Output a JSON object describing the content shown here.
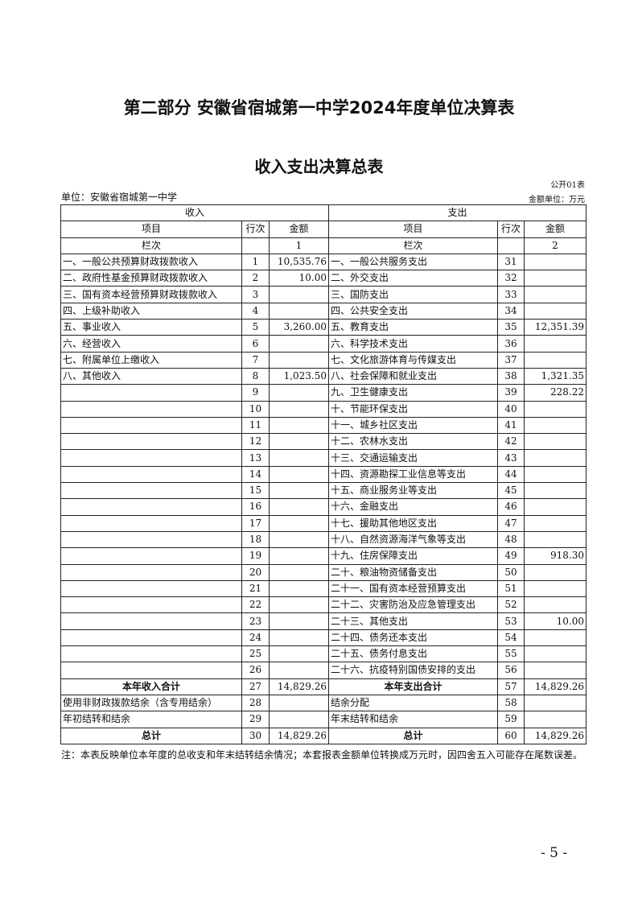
{
  "title": "第二部分  安徽省宿城第一中学2024年度单位决算表",
  "subtitle": "收入支出决算总表",
  "form_no": "公开01表",
  "unit": "单位：安徽省宿城第一中学",
  "amount_unit": "金额单位：万元",
  "table": {
    "income_header": "收入",
    "expense_header": "支出",
    "col_item": "项目",
    "col_line": "行次",
    "col_amount": "金额",
    "col_row_label": "栏次",
    "income_col_no": "1",
    "expense_col_no": "2",
    "rows": [
      [
        "一、一般公共预算财政拨款收入",
        "1",
        "10,535.76",
        "一、一般公共服务支出",
        "31",
        ""
      ],
      [
        "二、政府性基金预算财政拨款收入",
        "2",
        "10.00",
        "二、外交支出",
        "32",
        ""
      ],
      [
        "三、国有资本经营预算财政拨款收入",
        "3",
        "",
        "三、国防支出",
        "33",
        ""
      ],
      [
        "四、上级补助收入",
        "4",
        "",
        "四、公共安全支出",
        "34",
        ""
      ],
      [
        "五、事业收入",
        "5",
        "3,260.00",
        "五、教育支出",
        "35",
        "12,351.39"
      ],
      [
        "六、经营收入",
        "6",
        "",
        "六、科学技术支出",
        "36",
        ""
      ],
      [
        "七、附属单位上缴收入",
        "7",
        "",
        "七、文化旅游体育与传媒支出",
        "37",
        ""
      ],
      [
        "八、其他收入",
        "8",
        "1,023.50",
        "八、社会保障和就业支出",
        "38",
        "1,321.35"
      ],
      [
        "",
        "9",
        "",
        "九、卫生健康支出",
        "39",
        "228.22"
      ],
      [
        "",
        "10",
        "",
        "十、节能环保支出",
        "40",
        ""
      ],
      [
        "",
        "11",
        "",
        "十一、城乡社区支出",
        "41",
        ""
      ],
      [
        "",
        "12",
        "",
        "十二、农林水支出",
        "42",
        ""
      ],
      [
        "",
        "13",
        "",
        "十三、交通运输支出",
        "43",
        ""
      ],
      [
        "",
        "14",
        "",
        "十四、资源勘探工业信息等支出",
        "44",
        ""
      ],
      [
        "",
        "15",
        "",
        "十五、商业服务业等支出",
        "45",
        ""
      ],
      [
        "",
        "16",
        "",
        "十六、金融支出",
        "46",
        ""
      ],
      [
        "",
        "17",
        "",
        "十七、援助其他地区支出",
        "47",
        ""
      ],
      [
        "",
        "18",
        "",
        "十八、自然资源海洋气象等支出",
        "48",
        ""
      ],
      [
        "",
        "19",
        "",
        "十九、住房保障支出",
        "49",
        "918.30"
      ],
      [
        "",
        "20",
        "",
        "二十、粮油物资储备支出",
        "50",
        ""
      ],
      [
        "",
        "21",
        "",
        "二十一、国有资本经营预算支出",
        "51",
        ""
      ],
      [
        "",
        "22",
        "",
        "二十二、灾害防治及应急管理支出",
        "52",
        ""
      ],
      [
        "",
        "23",
        "",
        "二十三、其他支出",
        "53",
        "10.00"
      ],
      [
        "",
        "24",
        "",
        "二十四、债务还本支出",
        "54",
        ""
      ],
      [
        "",
        "25",
        "",
        "二十五、债务付息支出",
        "55",
        ""
      ],
      [
        "",
        "26",
        "",
        "二十六、抗疫特别国债安排的支出",
        "56",
        ""
      ],
      [
        "本年收入合计",
        "27",
        "14,829.26",
        "本年支出合计",
        "57",
        "14,829.26"
      ],
      [
        "使用非财政拨款结余（含专用结余）",
        "28",
        "",
        "结余分配",
        "58",
        ""
      ],
      [
        "年初结转和结余",
        "29",
        "",
        "年末结转和结余",
        "59",
        ""
      ],
      [
        "总计",
        "30",
        "14,829.26",
        "总计",
        "60",
        "14,829.26"
      ]
    ]
  },
  "note": "注：本表反映单位本年度的总收支和年末结转结余情况；本套报表金额单位转换成万元时，因四舍五入可能存在尾数误差。",
  "page_number": "- 5 -"
}
